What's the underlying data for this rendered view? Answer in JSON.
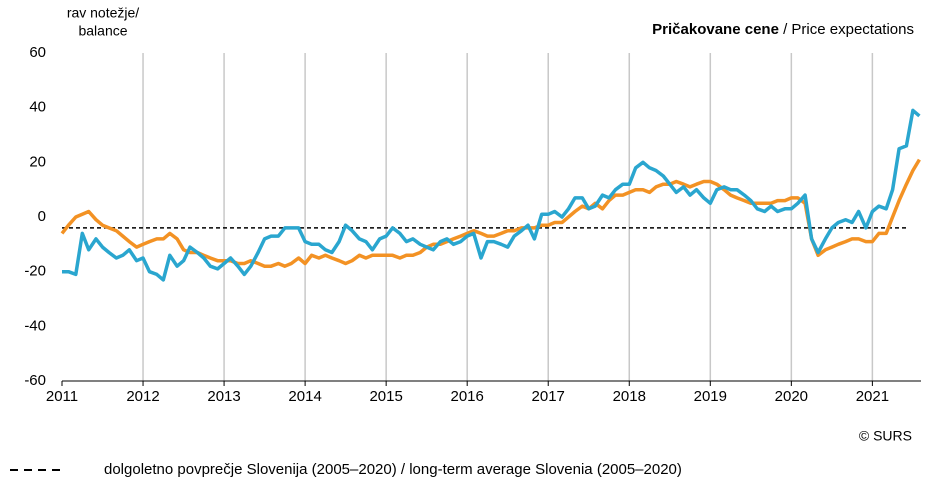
{
  "chart_data": {
    "type": "line",
    "title": "Pričakovane cene",
    "subtitle": "/ Price expectations",
    "ylabel": [
      "rav notežje/",
      "balance"
    ],
    "source": "© SURS",
    "x": [
      2011,
      2011.08,
      2011.17,
      2011.25,
      2011.33,
      2011.42,
      2011.5,
      2011.58,
      2011.67,
      2011.75,
      2011.83,
      2011.92,
      2012,
      2012.08,
      2012.17,
      2012.25,
      2012.33,
      2012.42,
      2012.5,
      2012.58,
      2012.67,
      2012.75,
      2012.83,
      2012.92,
      2013,
      2013.08,
      2013.17,
      2013.25,
      2013.33,
      2013.42,
      2013.5,
      2013.58,
      2013.67,
      2013.75,
      2013.83,
      2013.92,
      2014,
      2014.08,
      2014.17,
      2014.25,
      2014.33,
      2014.42,
      2014.5,
      2014.58,
      2014.67,
      2014.75,
      2014.83,
      2014.92,
      2015,
      2015.08,
      2015.17,
      2015.25,
      2015.33,
      2015.42,
      2015.5,
      2015.58,
      2015.67,
      2015.75,
      2015.83,
      2015.92,
      2016,
      2016.08,
      2016.17,
      2016.25,
      2016.33,
      2016.42,
      2016.5,
      2016.58,
      2016.67,
      2016.75,
      2016.83,
      2016.92,
      2017,
      2017.08,
      2017.17,
      2017.25,
      2017.33,
      2017.42,
      2017.5,
      2017.58,
      2017.67,
      2017.75,
      2017.83,
      2017.92,
      2018,
      2018.08,
      2018.17,
      2018.25,
      2018.33,
      2018.42,
      2018.5,
      2018.58,
      2018.67,
      2018.75,
      2018.83,
      2018.92,
      2019,
      2019.08,
      2019.17,
      2019.25,
      2019.33,
      2019.42,
      2019.5,
      2019.58,
      2019.67,
      2019.75,
      2019.83,
      2019.92,
      2020,
      2020.08,
      2020.17,
      2020.25,
      2020.33,
      2020.42,
      2020.5,
      2020.58,
      2020.67,
      2020.75,
      2020.83,
      2020.92,
      2021,
      2021.08,
      2021.17,
      2021.25,
      2021.33,
      2021.42,
      2021.5,
      2021.58
    ],
    "series": [
      {
        "color": "#2aa6cf",
        "values": [
          -20,
          -20,
          -21,
          -6,
          -12,
          -8,
          -11,
          -13,
          -15,
          -14,
          -12,
          -16,
          -15,
          -20,
          -21,
          -23,
          -14,
          -18,
          -16,
          -11,
          -13,
          -15,
          -18,
          -19,
          -17,
          -15,
          -18,
          -21,
          -18,
          -13,
          -8,
          -7,
          -7,
          -4,
          -4,
          -4,
          -9,
          -10,
          -10,
          -12,
          -13,
          -9,
          -3,
          -5,
          -8,
          -9,
          -12,
          -8,
          -7,
          -4,
          -6,
          -9,
          -8,
          -10,
          -11,
          -12,
          -9,
          -8,
          -10,
          -9,
          -7,
          -6,
          -15,
          -9,
          -9,
          -10,
          -11,
          -7,
          -5,
          -3,
          -8,
          1,
          1,
          2,
          0,
          3,
          7,
          7,
          3,
          4,
          8,
          7,
          10,
          12,
          12,
          18,
          20,
          18,
          17,
          15,
          12,
          9,
          11,
          8,
          10,
          7,
          5,
          10,
          11,
          10,
          10,
          8,
          6,
          3,
          2,
          4,
          2,
          3,
          3,
          5,
          8,
          -8,
          -13,
          -8,
          -4,
          -2,
          -1,
          -2,
          2,
          -4,
          2,
          4,
          3,
          10,
          25,
          26,
          39,
          37
        ]
      },
      {
        "color": "#f39224",
        "values": [
          -6,
          -3,
          0,
          1,
          2,
          -1,
          -3,
          -4,
          -5,
          -7,
          -9,
          -11,
          -10,
          -9,
          -8,
          -8,
          -6,
          -8,
          -12,
          -13,
          -13,
          -14,
          -15,
          -16,
          -16,
          -16,
          -17,
          -17,
          -16,
          -17,
          -18,
          -18,
          -17,
          -18,
          -17,
          -15,
          -17,
          -14,
          -15,
          -14,
          -15,
          -16,
          -17,
          -16,
          -14,
          -15,
          -14,
          -14,
          -14,
          -14,
          -15,
          -14,
          -14,
          -13,
          -11,
          -10,
          -10,
          -9,
          -8,
          -7,
          -6,
          -5,
          -6,
          -7,
          -7,
          -6,
          -5,
          -5,
          -4,
          -4,
          -4,
          -3,
          -3,
          -2,
          -2,
          0,
          2,
          4,
          3,
          5,
          3,
          6,
          8,
          8,
          9,
          10,
          10,
          9,
          11,
          12,
          12,
          13,
          12,
          11,
          12,
          13,
          13,
          12,
          10,
          8,
          7,
          6,
          5,
          5,
          5,
          5,
          6,
          6,
          7,
          7,
          5,
          -8,
          -14,
          -12,
          -11,
          -10,
          -9,
          -8,
          -8,
          -9,
          -9,
          -6,
          -6,
          0,
          6,
          12,
          17,
          21
        ]
      }
    ],
    "reference_line": {
      "name": "dolgoletno povprečje Slovenija (2005–2020) / long-term average Slovenia (2005–2020)",
      "value": -4,
      "color": "#000000"
    },
    "xlim": [
      2011,
      2021.6
    ],
    "xticks": [
      2011,
      2012,
      2013,
      2014,
      2015,
      2016,
      2017,
      2018,
      2019,
      2020,
      2021
    ],
    "ylim": [
      -60,
      60
    ],
    "yticks": [
      -60,
      -40,
      -20,
      0,
      20,
      40,
      60
    ],
    "grid": true,
    "legend": "bottom"
  }
}
